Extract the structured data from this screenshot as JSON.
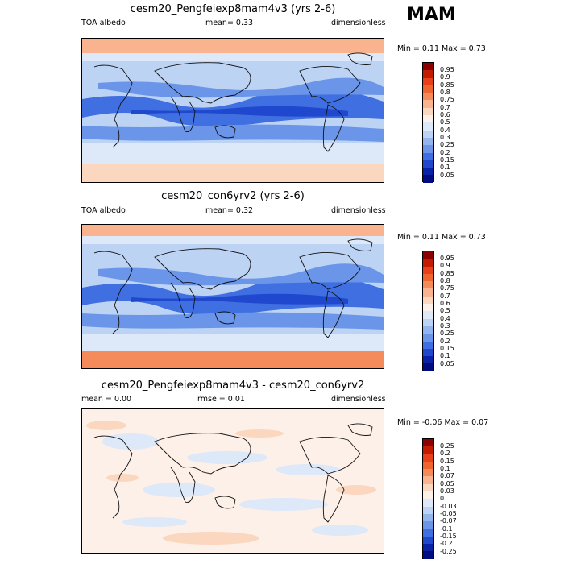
{
  "season": "MAM",
  "panels": [
    {
      "title": "cesm20_Pengfeiexp8mam4v3 (yrs 2-6)",
      "left_label": "TOA albedo",
      "mean_text": "mean=   0.33",
      "units": "dimensionless",
      "minmax": "Min =   0.11 Max =   0.73",
      "levels": [
        "0.95",
        "0.9",
        "0.85",
        "0.8",
        "0.75",
        "0.7",
        "0.6",
        "0.5",
        "0.4",
        "0.3",
        "0.25",
        "0.2",
        "0.15",
        "0.1",
        "0.05"
      ]
    },
    {
      "title": "cesm20_con6yrv2 (yrs 2-6)",
      "left_label": "TOA albedo",
      "mean_text": "mean=   0.32",
      "units": "dimensionless",
      "minmax": "Min =   0.11 Max =   0.73",
      "levels": [
        "0.95",
        "0.9",
        "0.85",
        "0.8",
        "0.75",
        "0.7",
        "0.6",
        "0.5",
        "0.4",
        "0.3",
        "0.25",
        "0.2",
        "0.15",
        "0.1",
        "0.05"
      ]
    },
    {
      "title": "cesm20_Pengfeiexp8mam4v3 - cesm20_con6yrv2",
      "left_label": "mean =   0.00",
      "mean_text": "rmse =   0.01",
      "units": "dimensionless",
      "minmax": "Min =  -0.06 Max =   0.07",
      "levels": [
        "0.25",
        "0.2",
        "0.15",
        "0.1",
        "0.07",
        "0.05",
        "0.03",
        "0",
        "-0.03",
        "-0.05",
        "-0.07",
        "-0.1",
        "-0.15",
        "-0.2",
        "-0.25"
      ]
    }
  ],
  "colors": {
    "abs_scale": [
      "#8b0000",
      "#c41a00",
      "#e8401a",
      "#f0652e",
      "#f58b5a",
      "#f9b38e",
      "#fbd7c0",
      "#fdf0e8",
      "#dde8f8",
      "#bcd3f4",
      "#93b5ee",
      "#6a95e8",
      "#3f6fe0",
      "#1f48cf",
      "#0a22a6",
      "#000c80"
    ],
    "diff_scale": [
      "#8b0000",
      "#c41a00",
      "#e8401a",
      "#f0652e",
      "#f58b5a",
      "#f9b38e",
      "#fbd7c0",
      "#fdf0e8",
      "#dde8f8",
      "#bcd3f4",
      "#93b5ee",
      "#6a95e8",
      "#3f6fe0",
      "#1f48cf",
      "#0a22a6",
      "#000c80"
    ]
  }
}
